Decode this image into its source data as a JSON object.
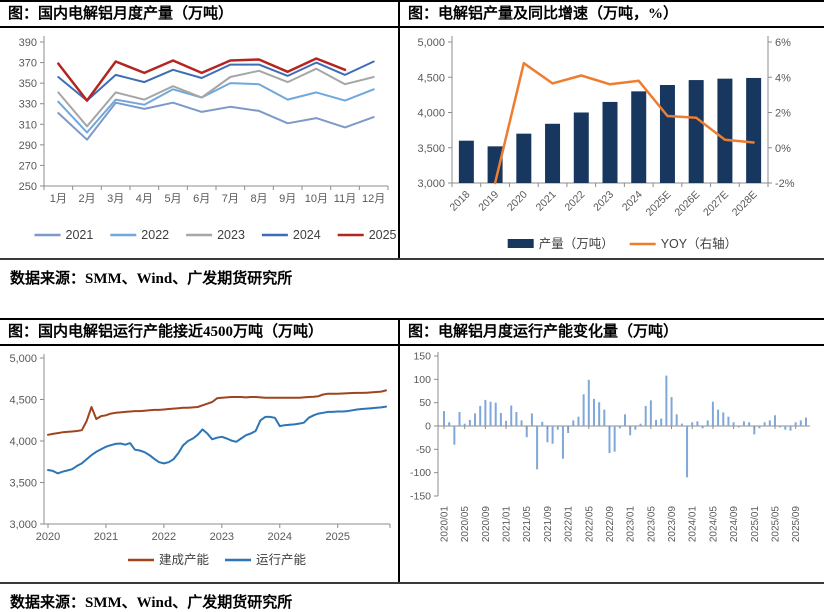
{
  "page": {
    "source_note": "数据来源：SMM、Wind、广发期货研究所"
  },
  "panels": [
    {
      "title": "图：国内电解铝月度产量（万吨）"
    },
    {
      "title": "图：电解铝产量及同比增速（万吨，%）"
    },
    {
      "title": "图：国内电解铝运行产能接近4500万吨（万吨）"
    },
    {
      "title": "图：电解铝月度运行产能变化量（万吨）"
    }
  ],
  "colors": {
    "axis_line": "#8c8c8c",
    "tick_text": "#595959",
    "legend_text": "#404040"
  },
  "chart_data": [
    {
      "type": "line",
      "title": "国内电解铝月度产量（万吨）",
      "categories": [
        "1月",
        "2月",
        "3月",
        "4月",
        "5月",
        "6月",
        "7月",
        "8月",
        "9月",
        "10月",
        "11月",
        "12月"
      ],
      "series": [
        {
          "name": "2021",
          "color": "#7C9AC8",
          "width": 2,
          "values": [
            321,
            295,
            331,
            325,
            331,
            322,
            327,
            323,
            311,
            316,
            307,
            317
          ]
        },
        {
          "name": "2022",
          "color": "#6FA8DC",
          "width": 2,
          "values": [
            332,
            302,
            334,
            329,
            344,
            336,
            350,
            349,
            334,
            341,
            333,
            344
          ]
        },
        {
          "name": "2023",
          "color": "#A6A6A6",
          "width": 2,
          "values": [
            341,
            308,
            341,
            334,
            347,
            336,
            356,
            362,
            351,
            364,
            349,
            356
          ]
        },
        {
          "name": "2024",
          "color": "#3E6DB5",
          "width": 2,
          "values": [
            356,
            333,
            358,
            351,
            363,
            355,
            368,
            368,
            357,
            370,
            358,
            371
          ]
        },
        {
          "name": "2025",
          "color": "#B42521",
          "width": 2.5,
          "values": [
            369,
            333,
            371,
            360,
            372,
            360,
            372,
            373,
            361,
            374,
            363
          ]
        }
      ],
      "ylim": [
        250,
        390
      ],
      "ytick_step": 20,
      "ytick_labels": [
        "250",
        "270",
        "290",
        "310",
        "330",
        "350",
        "370",
        "390"
      ],
      "grid": false,
      "legend_position": "bottom"
    },
    {
      "type": "bar",
      "title": "电解铝产量及同比增速（万吨，%）",
      "categories": [
        "2018",
        "2019",
        "2020",
        "2021",
        "2022",
        "2023",
        "2024",
        "2025E",
        "2026E",
        "2027E",
        "2028E"
      ],
      "series": [
        {
          "name": "产量（万吨）",
          "type": "bar",
          "axis": "left",
          "color": "#17375E",
          "values": [
            3600,
            3520,
            3700,
            3840,
            4000,
            4150,
            4300,
            4390,
            4460,
            4480,
            4490
          ]
        },
        {
          "name": "YOY（右轴）",
          "type": "line",
          "axis": "right",
          "color": "#ED7D31",
          "values": [
            null,
            -2.0,
            4.8,
            3.65,
            4.1,
            3.6,
            3.8,
            1.8,
            1.7,
            0.45,
            0.3
          ]
        }
      ],
      "left_ylim": [
        3000,
        5000
      ],
      "left_ytick_labels": [
        "3,000",
        "3,500",
        "4,000",
        "4,500",
        "5,000"
      ],
      "right_ylim": [
        -2,
        6
      ],
      "right_ytick_labels": [
        "-2%",
        "0%",
        "2%",
        "4%",
        "6%"
      ],
      "grid": false,
      "legend_position": "bottom"
    },
    {
      "type": "line",
      "title": "国内电解铝运行产能接近4500万吨（万吨）",
      "x_start": "2020/01",
      "x_freq": "monthly",
      "n_points": 71,
      "x_tick_labels": [
        "2020",
        "2021",
        "2022",
        "2023",
        "2024",
        "2025"
      ],
      "x_tick_indices": [
        0,
        12,
        24,
        36,
        48,
        60
      ],
      "series": [
        {
          "name": "建成产能",
          "color": "#A0431F",
          "width": 2,
          "values": [
            4075,
            4085,
            4095,
            4105,
            4110,
            4115,
            4120,
            4130,
            4240,
            4410,
            4265,
            4300,
            4310,
            4330,
            4340,
            4345,
            4350,
            4355,
            4360,
            4360,
            4365,
            4370,
            4375,
            4375,
            4380,
            4385,
            4390,
            4395,
            4400,
            4400,
            4405,
            4410,
            4430,
            4450,
            4470,
            4515,
            4520,
            4525,
            4530,
            4530,
            4530,
            4525,
            4530,
            4530,
            4525,
            4520,
            4520,
            4520,
            4520,
            4520,
            4520,
            4520,
            4522,
            4525,
            4530,
            4532,
            4540,
            4560,
            4570,
            4570,
            4570,
            4572,
            4575,
            4578,
            4580,
            4580,
            4582,
            4585,
            4590,
            4595,
            4610
          ]
        },
        {
          "name": "运行产能",
          "color": "#2E75B6",
          "width": 2,
          "values": [
            3650,
            3640,
            3610,
            3630,
            3645,
            3660,
            3700,
            3730,
            3780,
            3830,
            3870,
            3900,
            3930,
            3950,
            3965,
            3970,
            3955,
            3975,
            3895,
            3885,
            3865,
            3830,
            3785,
            3745,
            3730,
            3745,
            3780,
            3855,
            3950,
            4000,
            4030,
            4075,
            4140,
            4090,
            4020,
            4040,
            4050,
            4030,
            4005,
            3990,
            4030,
            4070,
            4090,
            4120,
            4250,
            4290,
            4290,
            4280,
            4180,
            4190,
            4195,
            4200,
            4210,
            4220,
            4280,
            4310,
            4330,
            4340,
            4350,
            4350,
            4355,
            4355,
            4360,
            4370,
            4380,
            4385,
            4390,
            4395,
            4400,
            4405,
            4415
          ]
        }
      ],
      "ylim": [
        3000,
        5000
      ],
      "ytick_labels": [
        "3,000",
        "3,500",
        "4,000",
        "4,500",
        "5,000"
      ],
      "grid": false,
      "legend_position": "bottom"
    },
    {
      "type": "bar",
      "title": "电解铝月度运行产能变化量（万吨）",
      "bar_color": "#7FA8D9",
      "x_start": "2020/01",
      "x_freq": "monthly",
      "n_points": 71,
      "x_tick_labels": [
        "2020/01",
        "2020/05",
        "2020/09",
        "2021/01",
        "2021/05",
        "2021/09",
        "2022/01",
        "2022/05",
        "2022/09",
        "2023/01",
        "2023/05",
        "2023/09",
        "2024/01",
        "2024/05",
        "2024/09",
        "2025/01",
        "2025/05",
        "2025/09"
      ],
      "x_tick_indices": [
        0,
        4,
        8,
        12,
        16,
        20,
        24,
        28,
        32,
        36,
        40,
        44,
        48,
        52,
        56,
        60,
        64,
        68
      ],
      "values": [
        32,
        8,
        -40,
        30,
        5,
        13,
        27,
        43,
        56,
        52,
        50,
        28,
        11,
        44,
        30,
        12,
        -24,
        27,
        -93,
        9,
        -35,
        -38,
        -8,
        -70,
        -15,
        12,
        20,
        68,
        99,
        58,
        51,
        35,
        -58,
        -55,
        -5,
        25,
        -20,
        -8,
        5,
        43,
        55,
        13,
        16,
        108,
        62,
        25,
        5,
        -110,
        8,
        10,
        -5,
        12,
        52,
        35,
        29,
        20,
        8,
        -3,
        10,
        8,
        -18,
        -5,
        8,
        12,
        23,
        -3,
        -8,
        -10,
        8,
        12,
        18
      ],
      "ylim": [
        -150,
        150
      ],
      "ytick_step": 50,
      "ytick_labels": [
        "-150",
        "-100",
        "-50",
        "0",
        "50",
        "100",
        "150"
      ],
      "grid": false,
      "legend_position": "none"
    }
  ]
}
